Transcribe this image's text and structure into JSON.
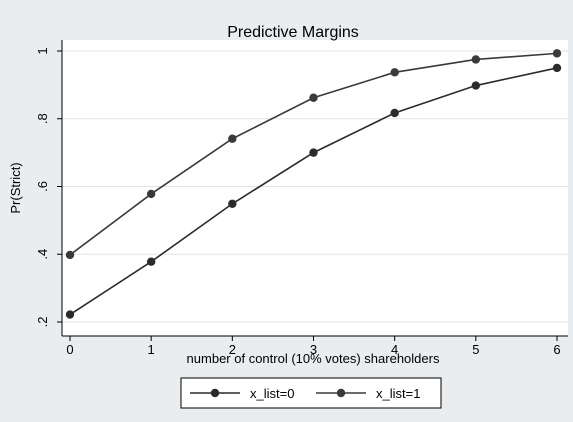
{
  "chart_data": {
    "type": "line",
    "title": "Predictive Margins",
    "xlabel": "number of control (10% votes) shareholders",
    "ylabel": "Pr(Strict)",
    "xlim": [
      0,
      6
    ],
    "ylim": [
      0.2,
      1.0
    ],
    "x_ticks": [
      {
        "value": 0,
        "label": "0"
      },
      {
        "value": 1,
        "label": "1"
      },
      {
        "value": 2,
        "label": "2"
      },
      {
        "value": 3,
        "label": "3"
      },
      {
        "value": 4,
        "label": "4"
      },
      {
        "value": 5,
        "label": "5"
      },
      {
        "value": 6,
        "label": "6"
      }
    ],
    "y_ticks": [
      {
        "value": 0.2,
        "label": ".2"
      },
      {
        "value": 0.4,
        "label": ".4"
      },
      {
        "value": 0.6,
        "label": ".6"
      },
      {
        "value": 0.8,
        "label": ".8"
      },
      {
        "value": 1.0,
        "label": "1"
      }
    ],
    "grid": true,
    "legend_position": "bottom",
    "x": [
      0,
      1,
      2,
      3,
      4,
      5,
      6
    ],
    "series": [
      {
        "name": "x_list=0",
        "values": [
          0.222,
          0.378,
          0.549,
          0.7,
          0.817,
          0.898,
          0.95
        ],
        "color": "#2b2b2b"
      },
      {
        "name": "x_list=1",
        "values": [
          0.398,
          0.578,
          0.741,
          0.862,
          0.937,
          0.975,
          0.993
        ],
        "color": "#3a3a3a"
      }
    ]
  }
}
